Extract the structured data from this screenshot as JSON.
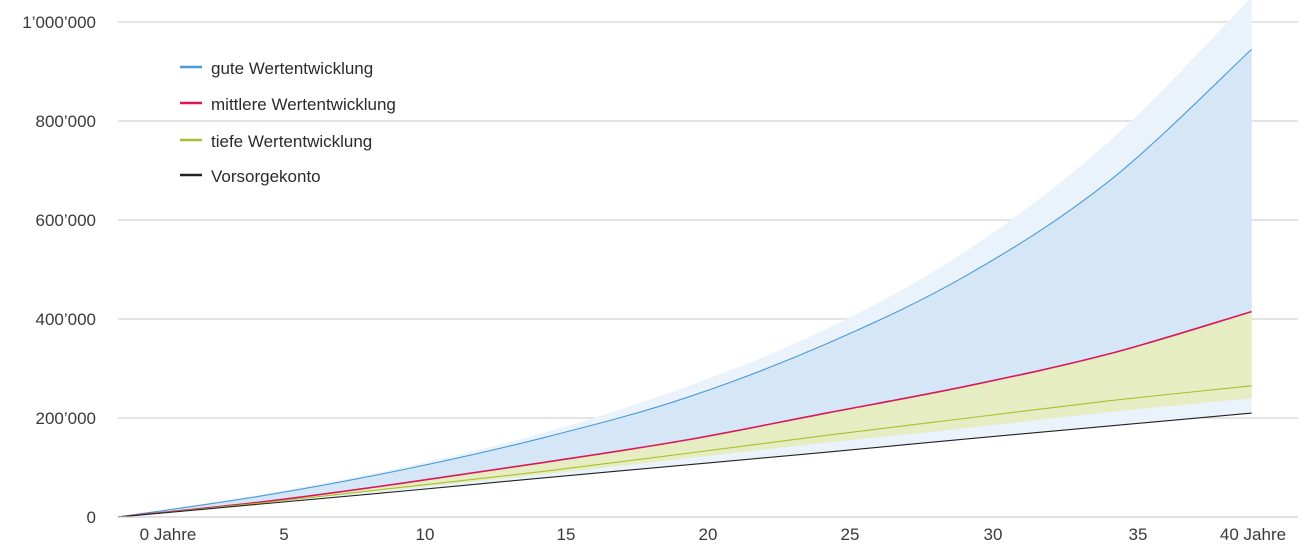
{
  "chart_data": {
    "type": "area",
    "x": [
      0,
      5,
      10,
      15,
      20,
      25,
      30,
      35,
      40
    ],
    "x_tick_labels": [
      "0 Jahre",
      "5",
      "10",
      "15",
      "20",
      "25",
      "30",
      "35",
      "40 Jahre"
    ],
    "y_ticks": [
      0,
      200000,
      400000,
      600000,
      800000,
      1000000
    ],
    "y_tick_labels": [
      "0",
      "200’000",
      "400’000",
      "600’000",
      "800’000",
      "1’000’000"
    ],
    "xlim": [
      0,
      41
    ],
    "ylim": [
      0,
      1000000
    ],
    "grid": true,
    "legend_position": "top-left",
    "series": [
      {
        "name": "gute Wertentwicklung",
        "color": "#4a9bd6",
        "values": [
          0,
          42000,
          95000,
          160000,
          240000,
          350000,
          490000,
          680000,
          945000
        ]
      },
      {
        "name": "mittlere Wertentwicklung",
        "color": "#d8185a",
        "values": [
          0,
          30000,
          68000,
          110000,
          155000,
          210000,
          265000,
          330000,
          415000
        ]
      },
      {
        "name": "tiefe Wertentwicklung",
        "color": "#a8c030",
        "values": [
          0,
          28000,
          60000,
          92000,
          128000,
          165000,
          200000,
          235000,
          265000
        ]
      },
      {
        "name": "Vorsorgekonto",
        "color": "#222222",
        "values": [
          0,
          26000,
          52000,
          79000,
          105000,
          131000,
          158000,
          184000,
          210000
        ]
      }
    ],
    "bands": [
      {
        "upper": [
          0,
          45000,
          100000,
          170000,
          262000,
          380000,
          540000,
          760000,
          1050000
        ],
        "lower": [
          0,
          26000,
          52000,
          79000,
          105000,
          131000,
          158000,
          184000,
          210000
        ],
        "color": "#eaf2fc"
      },
      {
        "upper": [
          0,
          42000,
          95000,
          160000,
          240000,
          350000,
          490000,
          680000,
          945000
        ],
        "lower": [
          0,
          30000,
          68000,
          110000,
          155000,
          210000,
          265000,
          330000,
          415000
        ],
        "color": "#d5e6f7"
      },
      {
        "upper": [
          0,
          30000,
          68000,
          110000,
          155000,
          210000,
          265000,
          330000,
          415000
        ],
        "lower": [
          0,
          27000,
          57000,
          86000,
          118000,
          150000,
          180000,
          212000,
          240000
        ],
        "color": "#e7edc2"
      }
    ]
  }
}
